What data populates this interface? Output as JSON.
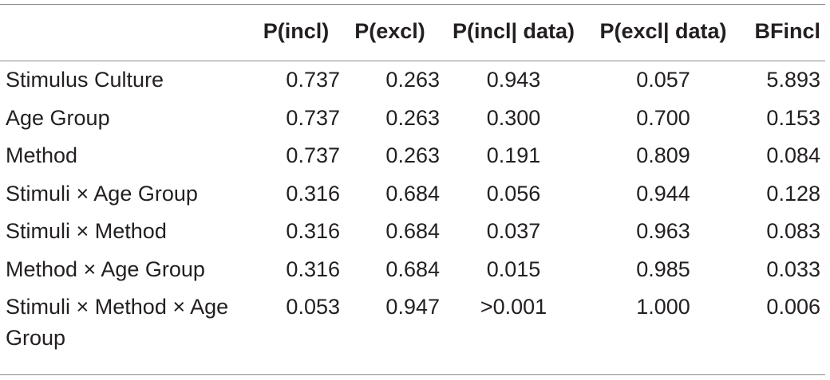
{
  "table": {
    "headers": [
      "",
      "P(incl)",
      "P(excl)",
      "P(incl| data)",
      "P(excl| data)",
      "BFincl"
    ],
    "rows": [
      {
        "label": "Stimulus Culture",
        "p_incl": "0.737",
        "p_excl": "0.263",
        "p_incl_data": "0.943",
        "p_excl_data": "0.057",
        "bf_incl": "5.893"
      },
      {
        "label": "Age Group",
        "p_incl": "0.737",
        "p_excl": "0.263",
        "p_incl_data": "0.300",
        "p_excl_data": "0.700",
        "bf_incl": "0.153"
      },
      {
        "label": "Method",
        "p_incl": "0.737",
        "p_excl": "0.263",
        "p_incl_data": "0.191",
        "p_excl_data": "0.809",
        "bf_incl": "0.084"
      },
      {
        "label": "Stimuli × Age Group",
        "p_incl": "0.316",
        "p_excl": "0.684",
        "p_incl_data": "0.056",
        "p_excl_data": "0.944",
        "bf_incl": "0.128"
      },
      {
        "label": "Stimuli × Method",
        "p_incl": "0.316",
        "p_excl": "0.684",
        "p_incl_data": "0.037",
        "p_excl_data": "0.963",
        "bf_incl": "0.083"
      },
      {
        "label": "Method × Age Group",
        "p_incl": "0.316",
        "p_excl": "0.684",
        "p_incl_data": "0.015",
        "p_excl_data": "0.985",
        "bf_incl": "0.033"
      },
      {
        "label": "Stimuli × Method × Age Group",
        "p_incl": "0.053",
        "p_excl": "0.947",
        "p_incl_data": ">0.001",
        "p_excl_data": "1.000",
        "bf_incl": "0.006"
      }
    ]
  }
}
